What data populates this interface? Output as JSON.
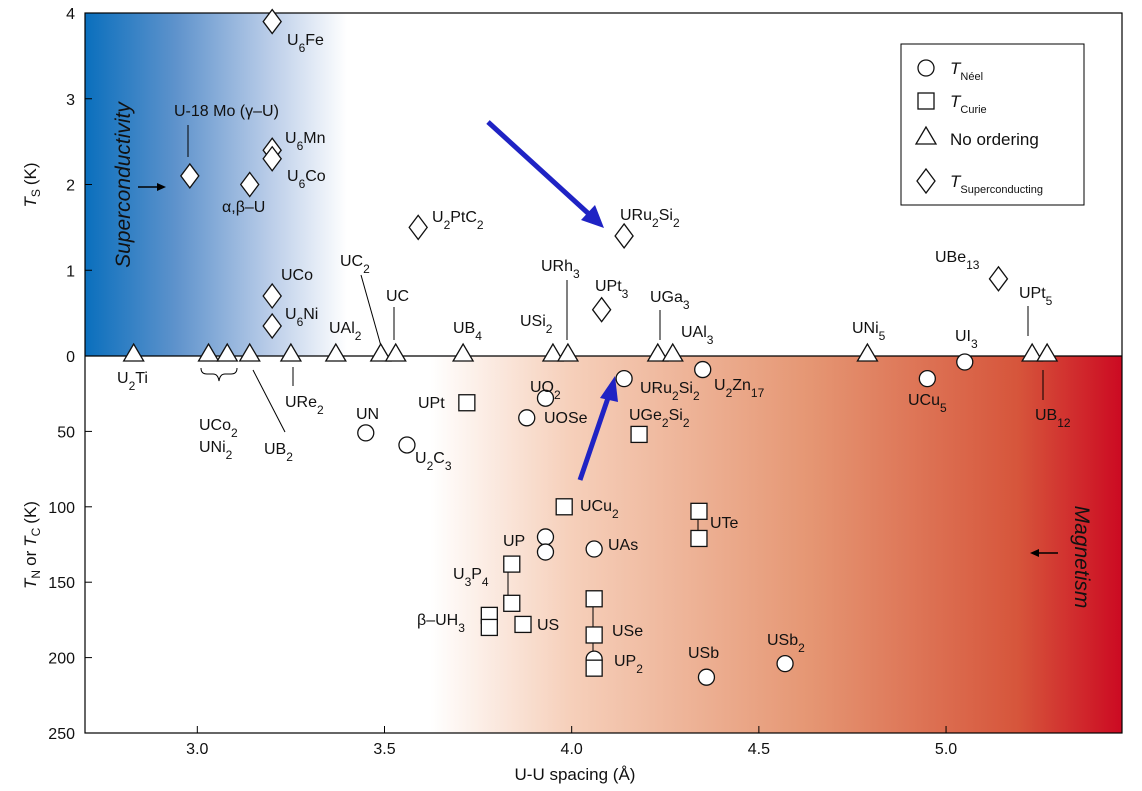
{
  "chart_data": {
    "type": "scatter",
    "title": "",
    "xlabel": "U-U spacing (Å)",
    "xlim": [
      2.7,
      5.47
    ],
    "x_ticks": [
      "3.0",
      "3.5",
      "4.0",
      "4.5",
      "5.0"
    ],
    "x_tick_values": [
      3.0,
      3.5,
      4.0,
      4.5,
      5.0
    ],
    "upper_axis": {
      "label_main": "T",
      "label_sub": "S",
      "label_unit": "(K)",
      "ylim": [
        0,
        4
      ],
      "ticks": [
        "0",
        "1",
        "2",
        "3",
        "4"
      ],
      "tick_values": [
        0,
        1,
        2,
        3,
        4
      ]
    },
    "lower_axis": {
      "label_main_1": "T",
      "label_sub_1": "N",
      "label_mid": "or",
      "label_main_2": "T",
      "label_sub_2": "C",
      "label_unit": "(K)",
      "ylim": [
        0,
        250
      ],
      "ticks": [
        "50",
        "100",
        "150",
        "200",
        "250"
      ],
      "tick_values": [
        50,
        100,
        150,
        200,
        250
      ]
    },
    "region_labels": {
      "superconductivity": "Superconductivity",
      "magnetism": "Magnetism"
    },
    "colors": {
      "superconductivity": "#0a6fbd",
      "magnetism": "#cc0a22",
      "arrow": "#1f23c4",
      "marker_stroke": "#111111"
    },
    "legend": {
      "position": "top-right",
      "entries": [
        {
          "marker": "circle",
          "symbol": "T",
          "sub": "Néel",
          "text": ""
        },
        {
          "marker": "square",
          "symbol": "T",
          "sub": "Curie",
          "text": ""
        },
        {
          "marker": "triangle",
          "symbol": "",
          "sub": "",
          "text": "No ordering"
        },
        {
          "marker": "diamond",
          "symbol": "T",
          "sub": "Superconducting",
          "text": ""
        }
      ]
    },
    "series": [
      {
        "name": "T_Superconducting",
        "marker": "diamond",
        "axis": "upper",
        "points": [
          {
            "x": 3.2,
            "y": 3.9,
            "label": "U6Fe"
          },
          {
            "x": 2.98,
            "y": 2.1,
            "label": "U-18 Mo (γ–U)"
          },
          {
            "x": 3.2,
            "y": 2.4,
            "label": "U6Mn"
          },
          {
            "x": 3.2,
            "y": 2.3,
            "label": "U6Co"
          },
          {
            "x": 3.14,
            "y": 2.0,
            "label": "α,β–U"
          },
          {
            "x": 3.59,
            "y": 1.5,
            "label": "U2PtC2"
          },
          {
            "x": 4.14,
            "y": 1.4,
            "label": "URu2Si2"
          },
          {
            "x": 3.2,
            "y": 0.7,
            "label": "UCo"
          },
          {
            "x": 3.2,
            "y": 0.35,
            "label": "U6Ni"
          },
          {
            "x": 4.08,
            "y": 0.54,
            "label": "UPt3"
          },
          {
            "x": 5.14,
            "y": 0.9,
            "label": "UBe13"
          }
        ]
      },
      {
        "name": "No ordering",
        "marker": "triangle",
        "axis": "upper",
        "points": [
          {
            "x": 2.83,
            "y": 0,
            "label": "U2Ti"
          },
          {
            "x": 3.03,
            "y": 0,
            "label": "UCo2"
          },
          {
            "x": 3.08,
            "y": 0,
            "label": "UNi2"
          },
          {
            "x": 3.14,
            "y": 0,
            "label": "UB2"
          },
          {
            "x": 3.25,
            "y": 0,
            "label": "URe2"
          },
          {
            "x": 3.37,
            "y": 0,
            "label": "UAl2"
          },
          {
            "x": 3.49,
            "y": 0,
            "label": "UC2"
          },
          {
            "x": 3.53,
            "y": 0,
            "label": "UC"
          },
          {
            "x": 3.71,
            "y": 0,
            "label": "UB4"
          },
          {
            "x": 3.95,
            "y": 0,
            "label": "USi2"
          },
          {
            "x": 3.99,
            "y": 0,
            "label": "URh3"
          },
          {
            "x": 4.23,
            "y": 0,
            "label": "UGa3"
          },
          {
            "x": 4.27,
            "y": 0,
            "label": "UAl3"
          },
          {
            "x": 4.79,
            "y": 0,
            "label": "UNi5"
          },
          {
            "x": 5.23,
            "y": 0,
            "label": "UPt5"
          },
          {
            "x": 5.27,
            "y": 0,
            "label": "UB12"
          }
        ]
      },
      {
        "name": "T_Néel",
        "marker": "circle",
        "axis": "lower",
        "points": [
          {
            "x": 4.14,
            "y": 15,
            "label": "URu2Si2"
          },
          {
            "x": 4.35,
            "y": 9,
            "label": "U2Zn17"
          },
          {
            "x": 4.95,
            "y": 15,
            "label": "UCu5"
          },
          {
            "x": 5.05,
            "y": 4,
            "label": "UI3"
          },
          {
            "x": 3.93,
            "y": 28,
            "label": "UO2"
          },
          {
            "x": 3.88,
            "y": 41,
            "label": "UOSe"
          },
          {
            "x": 3.45,
            "y": 51,
            "label": "UN"
          },
          {
            "x": 3.56,
            "y": 59,
            "label": "U2C3"
          },
          {
            "x": 3.93,
            "y": 120,
            "label": "UP"
          },
          {
            "x": 3.93,
            "y": 130,
            "label": ""
          },
          {
            "x": 4.06,
            "y": 128,
            "label": "UAs"
          },
          {
            "x": 4.06,
            "y": 201,
            "label": "UP2"
          },
          {
            "x": 4.36,
            "y": 213,
            "label": "USb"
          },
          {
            "x": 4.57,
            "y": 204,
            "label": "USb2"
          }
        ]
      },
      {
        "name": "T_Curie",
        "marker": "square",
        "axis": "lower",
        "points": [
          {
            "x": 3.72,
            "y": 31,
            "label": "UPt"
          },
          {
            "x": 4.18,
            "y": 52,
            "label": "UGe2Si2"
          },
          {
            "x": 3.98,
            "y": 100,
            "label": "UCu2"
          },
          {
            "x": 4.34,
            "y": 103,
            "label": "UTe"
          },
          {
            "x": 4.34,
            "y": 121,
            "label": ""
          },
          {
            "x": 3.84,
            "y": 138,
            "label": "U3P4"
          },
          {
            "x": 3.84,
            "y": 164,
            "label": ""
          },
          {
            "x": 3.78,
            "y": 172,
            "label": "β–UH3"
          },
          {
            "x": 3.78,
            "y": 180,
            "label": ""
          },
          {
            "x": 3.87,
            "y": 178,
            "label": "US"
          },
          {
            "x": 4.06,
            "y": 161,
            "label": ""
          },
          {
            "x": 4.06,
            "y": 185,
            "label": "USe"
          },
          {
            "x": 4.06,
            "y": 207,
            "label": ""
          }
        ]
      }
    ]
  },
  "text": {
    "l_U6Fe": [
      "U",
      "6",
      "Fe"
    ],
    "l_U18Mo": [
      "U-18 Mo (γ–U)"
    ],
    "l_U6Mn": [
      "U",
      "6",
      "Mn"
    ],
    "l_U6Co": [
      "U",
      "6",
      "Co"
    ],
    "l_ab": [
      "α,β–U"
    ],
    "l_U2PtC2": [
      "U",
      "2",
      "PtC",
      "2",
      ""
    ],
    "l_URu2Si2": [
      "URu",
      "2",
      "Si",
      "2",
      ""
    ],
    "l_UCo": [
      "UCo"
    ],
    "l_U6Ni": [
      "U",
      "6",
      "Ni"
    ],
    "l_UPt3": [
      "UPt",
      "3",
      ""
    ],
    "l_UBe13": [
      "UBe",
      "13",
      ""
    ],
    "l_U2Ti": [
      "U",
      "2",
      "Ti"
    ],
    "l_UCo2": [
      "UCo",
      "2",
      ""
    ],
    "l_UNi2": [
      "UNi",
      "2",
      ""
    ],
    "l_UB2": [
      "UB",
      "2",
      ""
    ],
    "l_URe2": [
      "URe",
      "2",
      ""
    ],
    "l_UAl2": [
      "UAl",
      "2",
      ""
    ],
    "l_UC2": [
      "UC",
      "2",
      ""
    ],
    "l_UC": [
      "UC"
    ],
    "l_UB4": [
      "UB",
      "4",
      ""
    ],
    "l_USi2": [
      "USi",
      "2",
      ""
    ],
    "l_URh3": [
      "URh",
      "3",
      ""
    ],
    "l_UGa3": [
      "UGa",
      "3",
      ""
    ],
    "l_UAl3": [
      "UAl",
      "3",
      ""
    ],
    "l_UNi5": [
      "UNi",
      "5",
      ""
    ],
    "l_UPt5": [
      "UPt",
      "5",
      ""
    ],
    "l_UB12": [
      "UB",
      "12",
      ""
    ],
    "l_UI3": [
      "UI",
      "3",
      ""
    ],
    "l_UCu5": [
      "UCu",
      "5",
      ""
    ],
    "l_URu2Si2_low": [
      "URu",
      "2",
      "Si",
      "2",
      ""
    ],
    "l_U2Zn17": [
      "U",
      "2",
      "Zn",
      "17",
      ""
    ],
    "l_UPt": [
      "UPt"
    ],
    "l_UO2": [
      "UO",
      "2",
      ""
    ],
    "l_UOSe": [
      "UOSe"
    ],
    "l_UGe2Si2": [
      "UGe",
      "2",
      "Si",
      "2",
      ""
    ],
    "l_UN": [
      "UN"
    ],
    "l_U2C3": [
      "U",
      "2",
      "C",
      "3",
      ""
    ],
    "l_UCu2": [
      "UCu",
      "2",
      ""
    ],
    "l_UTe": [
      "UTe"
    ],
    "l_UP": [
      "UP"
    ],
    "l_UAs": [
      "UAs"
    ],
    "l_U3P4": [
      "U",
      "3",
      "P",
      "4",
      ""
    ],
    "l_bUH3": [
      "β–UH",
      "3",
      ""
    ],
    "l_US": [
      "US"
    ],
    "l_USe": [
      "USe"
    ],
    "l_UP2": [
      "UP",
      "2",
      ""
    ],
    "l_USb": [
      "USb"
    ],
    "l_USb2": [
      "USb",
      "2",
      ""
    ]
  }
}
